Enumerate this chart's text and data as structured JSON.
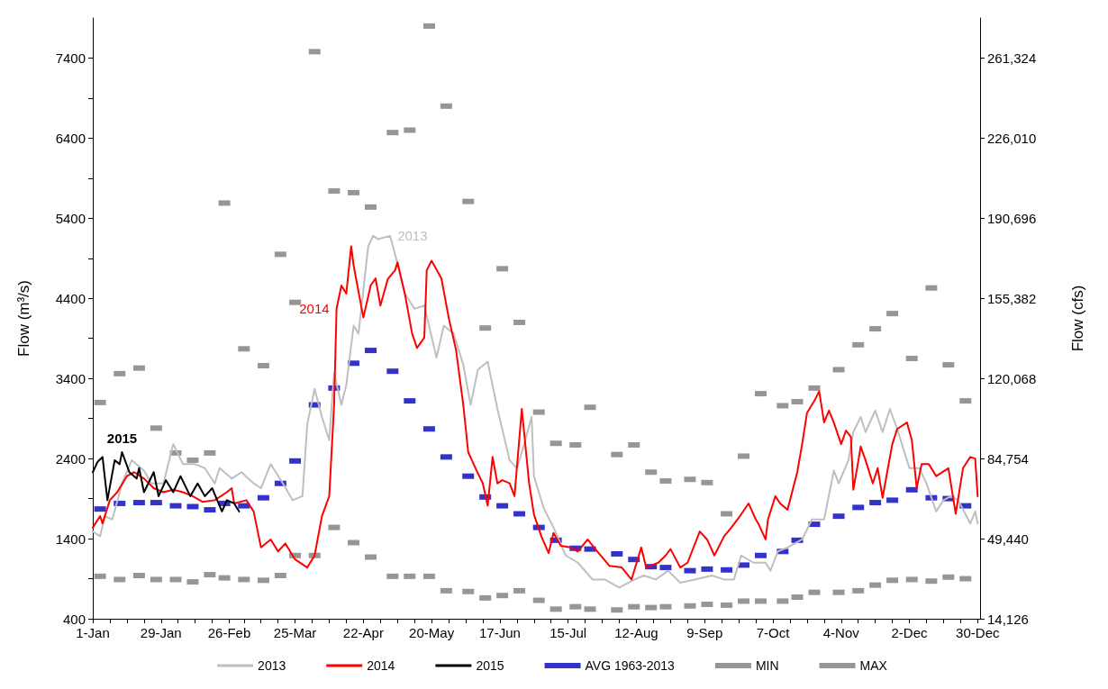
{
  "chart_data": {
    "type": "line",
    "ylabel": "Flow (m³/s)",
    "y2label": "Flow (cfs)",
    "xlim": [
      "--01-01",
      "--12-31"
    ],
    "ylim": [
      400,
      7900
    ],
    "y2lim": [
      14126,
      278986
    ],
    "xticks": [
      {
        "value": "--01-01",
        "label": "1-Jan"
      },
      {
        "value": "--01-08",
        "label": null
      },
      {
        "value": "--01-15",
        "label": null
      },
      {
        "value": "--01-22",
        "label": null
      },
      {
        "value": "--01-29",
        "label": "29-Jan"
      },
      {
        "value": "--02-05",
        "label": null
      },
      {
        "value": "--02-12",
        "label": null
      },
      {
        "value": "--02-19",
        "label": null
      },
      {
        "value": "--02-26",
        "label": "26-Feb"
      },
      {
        "value": "--03-04",
        "label": null
      },
      {
        "value": "--03-11",
        "label": null
      },
      {
        "value": "--03-18",
        "label": null
      },
      {
        "value": "--03-25",
        "label": "25-Mar"
      },
      {
        "value": "--04-01",
        "label": null
      },
      {
        "value": "--04-08",
        "label": null
      },
      {
        "value": "--04-15",
        "label": null
      },
      {
        "value": "--04-22",
        "label": "22-Apr"
      },
      {
        "value": "--04-29",
        "label": null
      },
      {
        "value": "--05-06",
        "label": null
      },
      {
        "value": "--05-13",
        "label": null
      },
      {
        "value": "--05-20",
        "label": "20-May"
      },
      {
        "value": "--05-27",
        "label": null
      },
      {
        "value": "--06-03",
        "label": null
      },
      {
        "value": "--06-10",
        "label": null
      },
      {
        "value": "--06-17",
        "label": "17-Jun"
      },
      {
        "value": "--06-24",
        "label": null
      },
      {
        "value": "--07-01",
        "label": null
      },
      {
        "value": "--07-08",
        "label": null
      },
      {
        "value": "--07-15",
        "label": "15-Jul"
      },
      {
        "value": "--07-22",
        "label": null
      },
      {
        "value": "--07-29",
        "label": null
      },
      {
        "value": "--08-05",
        "label": null
      },
      {
        "value": "--08-12",
        "label": "12-Aug"
      },
      {
        "value": "--08-19",
        "label": null
      },
      {
        "value": "--08-26",
        "label": null
      },
      {
        "value": "--09-02",
        "label": null
      },
      {
        "value": "--09-09",
        "label": "9-Sep"
      },
      {
        "value": "--09-16",
        "label": null
      },
      {
        "value": "--09-23",
        "label": null
      },
      {
        "value": "--09-30",
        "label": null
      },
      {
        "value": "--10-07",
        "label": "7-Oct"
      },
      {
        "value": "--10-14",
        "label": null
      },
      {
        "value": "--10-21",
        "label": null
      },
      {
        "value": "--10-28",
        "label": null
      },
      {
        "value": "--11-04",
        "label": "4-Nov"
      },
      {
        "value": "--11-11",
        "label": null
      },
      {
        "value": "--11-18",
        "label": null
      },
      {
        "value": "--11-25",
        "label": null
      },
      {
        "value": "--12-02",
        "label": "2-Dec"
      },
      {
        "value": "--12-09",
        "label": null
      },
      {
        "value": "--12-16",
        "label": null
      },
      {
        "value": "--12-23",
        "label": null
      },
      {
        "value": "--12-30",
        "label": "30-Dec"
      }
    ],
    "yticks": [
      400,
      {
        "value": 900,
        "label": null
      },
      1400,
      {
        "value": 1900,
        "label": null
      },
      2400,
      {
        "value": 2900,
        "label": null
      },
      3400,
      {
        "value": 3900,
        "label": null
      },
      4400,
      {
        "value": 4900,
        "label": null
      },
      5400,
      {
        "value": 5900,
        "label": null
      },
      6400,
      {
        "value": 6900,
        "label": null
      },
      7400
    ],
    "y2ticks": [
      {
        "value": 14126,
        "label": "14,126"
      },
      {
        "value": 49440,
        "label": "49,440"
      },
      {
        "value": 84754,
        "label": "84,754"
      },
      {
        "value": 120068,
        "label": "120,068"
      },
      {
        "value": 155382,
        "label": "155,382"
      },
      {
        "value": 190696,
        "label": "190,696"
      },
      {
        "value": 226010,
        "label": "226,010"
      },
      {
        "value": 261324,
        "label": "261,324"
      }
    ],
    "grid": false,
    "legend": "bottom",
    "line_style": "solid",
    "marker": "none",
    "series": [
      {
        "name": "2013",
        "color": "#bfbfbf",
        "x": [
          "--01-01",
          "--01-04",
          "--01-06",
          "--01-09",
          "--01-13",
          "--01-17",
          "--01-22",
          "--01-25",
          "--01-30",
          "--02-03",
          "--02-07",
          "--02-12",
          "--02-16",
          "--02-20",
          "--02-22",
          "--02-27",
          "--03-03",
          "--03-08",
          "--03-11",
          "--03-15",
          "--03-20",
          "--03-24",
          "--03-28",
          "--03-30",
          "--04-02",
          "--04-05",
          "--04-08",
          "--04-10",
          "--04-13",
          "--04-15",
          "--04-18",
          "--04-20",
          "--04-24",
          "--04-26",
          "--04-28",
          "--05-03",
          "--05-05",
          "--05-09",
          "--05-13",
          "--05-17",
          "--05-22",
          "--05-25",
          "--05-29",
          "--06-02",
          "--06-05",
          "--06-08",
          "--06-12",
          "--06-16",
          "--06-21",
          "--06-24",
          "--06-27",
          "--06-30",
          "--07-01",
          "--07-05",
          "--07-09",
          "--07-14",
          "--07-19",
          "--07-25",
          "--07-30",
          "--08-05",
          "--08-10",
          "--08-15",
          "--08-20",
          "--08-25",
          "--08-30",
          "--09-05",
          "--09-12",
          "--09-17",
          "--09-21",
          "--09-24",
          "--09-29",
          "--10-04",
          "--10-06",
          "--10-09",
          "--10-13",
          "--10-19",
          "--10-23",
          "--10-28",
          "--11-01",
          "--11-03",
          "--11-07",
          "--11-09",
          "--11-12",
          "--11-14",
          "--11-18",
          "--11-21",
          "--11-24",
          "--11-27",
          "--12-02",
          "--12-06",
          "--12-09",
          "--12-13",
          "--12-16",
          "--12-19",
          "--12-22",
          "--12-27",
          "--12-29",
          "--12-30"
        ],
        "values": [
          1490,
          1430,
          1680,
          1640,
          2090,
          2380,
          2250,
          2090,
          2090,
          2580,
          2330,
          2330,
          2280,
          2090,
          2280,
          2150,
          2230,
          2090,
          2030,
          2330,
          2090,
          1880,
          1930,
          2830,
          3270,
          2920,
          2630,
          3470,
          3070,
          3320,
          4060,
          3960,
          5050,
          5180,
          5140,
          5180,
          4950,
          4460,
          4270,
          4310,
          3660,
          4060,
          3960,
          3570,
          3070,
          3510,
          3610,
          3020,
          2380,
          2280,
          2580,
          2920,
          2180,
          1780,
          1540,
          1190,
          1100,
          890,
          890,
          790,
          870,
          940,
          890,
          1000,
          850,
          890,
          940,
          890,
          890,
          1190,
          1100,
          1100,
          1000,
          1240,
          1290,
          1390,
          1640,
          1640,
          2250,
          2090,
          2380,
          2730,
          2920,
          2730,
          3000,
          2730,
          3020,
          2770,
          2280,
          2280,
          2090,
          1740,
          1880,
          1930,
          1880,
          1590,
          1740,
          1590
        ]
      },
      {
        "name": "2014",
        "color": "#ff0000",
        "x": [
          "--01-01",
          "--01-04",
          "--01-05",
          "--01-08",
          "--01-11",
          "--01-15",
          "--01-18",
          "--01-22",
          "--01-26",
          "--01-30",
          "--02-03",
          "--02-07",
          "--02-11",
          "--02-15",
          "--02-20",
          "--02-25",
          "--02-27",
          "--02-28",
          "--03-05",
          "--03-08",
          "--03-11",
          "--03-15",
          "--03-18",
          "--03-21",
          "--03-25",
          "--03-30",
          "--04-02",
          "--04-05",
          "--04-08",
          "--04-10",
          "--04-11",
          "--04-13",
          "--04-15",
          "--04-17",
          "--04-18",
          "--04-22",
          "--04-25",
          "--04-27",
          "--04-29",
          "--05-02",
          "--05-05",
          "--05-06",
          "--05-09",
          "--05-12",
          "--05-14",
          "--05-17",
          "--05-18",
          "--05-20",
          "--05-24",
          "--05-27",
          "--05-30",
          "--06-02",
          "--06-04",
          "--06-07",
          "--06-10",
          "--06-12",
          "--06-14",
          "--06-16",
          "--06-18",
          "--06-21",
          "--06-23",
          "--06-26",
          "--06-29",
          "--07-01",
          "--07-04",
          "--07-07",
          "--07-09",
          "--07-12",
          "--07-16",
          "--07-19",
          "--07-23",
          "--07-27",
          "--08-01",
          "--08-06",
          "--08-10",
          "--08-14",
          "--08-16",
          "--08-21",
          "--08-24",
          "--08-26",
          "--08-30",
          "--09-02",
          "--09-07",
          "--09-10",
          "--09-13",
          "--09-17",
          "--09-20",
          "--09-23",
          "--09-27",
          "--09-30",
          "--10-01",
          "--10-04",
          "--10-05",
          "--10-08",
          "--10-10",
          "--10-13",
          "--10-17",
          "--10-19",
          "--10-21",
          "--10-24",
          "--10-26",
          "--10-28",
          "--10-30",
          "--11-01",
          "--11-04",
          "--11-06",
          "--11-08",
          "--11-09",
          "--11-11",
          "--11-12",
          "--11-14",
          "--11-17",
          "--11-19",
          "--11-21",
          "--11-23",
          "--11-25",
          "--11-27",
          "--12-01",
          "--12-03",
          "--12-05",
          "--12-07",
          "--12-10",
          "--12-13",
          "--12-18",
          "--12-21",
          "--12-24",
          "--12-27",
          "--12-29",
          "--12-30"
        ],
        "values": [
          1540,
          1680,
          1590,
          1880,
          1980,
          2180,
          2230,
          2150,
          2030,
          1980,
          2010,
          1980,
          1930,
          1860,
          1880,
          1980,
          2030,
          1840,
          1880,
          1740,
          1290,
          1390,
          1240,
          1340,
          1140,
          1040,
          1190,
          1680,
          1930,
          3070,
          4270,
          4560,
          4460,
          5050,
          4810,
          4160,
          4560,
          4650,
          4310,
          4640,
          4750,
          4850,
          4460,
          3960,
          3780,
          3910,
          4750,
          4870,
          4650,
          4160,
          3760,
          3070,
          2480,
          2280,
          2090,
          1810,
          2420,
          2090,
          2130,
          2090,
          1930,
          3020,
          2090,
          1700,
          1430,
          1220,
          1470,
          1310,
          1290,
          1240,
          1390,
          1240,
          1060,
          1040,
          890,
          1290,
          1040,
          1100,
          1190,
          1270,
          1040,
          1100,
          1490,
          1390,
          1190,
          1430,
          1540,
          1660,
          1840,
          1640,
          1590,
          1390,
          1640,
          1930,
          1840,
          1760,
          2230,
          2580,
          2970,
          3120,
          3240,
          2850,
          3000,
          2850,
          2580,
          2750,
          2670,
          2010,
          2360,
          2550,
          2380,
          2090,
          2280,
          1910,
          2250,
          2580,
          2770,
          2850,
          2630,
          2030,
          2330,
          2330,
          2180,
          2280,
          1710,
          2280,
          2420,
          2400,
          1930
        ]
      },
      {
        "name": "2015",
        "color": "#000000",
        "x": [
          "--01-01",
          "--01-03",
          "--01-05",
          "--01-07",
          "--01-10",
          "--01-12",
          "--01-13",
          "--01-16",
          "--01-19",
          "--01-20",
          "--01-22",
          "--01-26",
          "--01-28",
          "--01-31",
          "--02-03",
          "--02-06",
          "--02-10",
          "--02-13",
          "--02-16",
          "--02-19",
          "--02-23",
          "--02-25",
          "--02-28",
          "--03-02"
        ],
        "values": [
          2230,
          2360,
          2420,
          1880,
          2380,
          2330,
          2480,
          2230,
          2150,
          2280,
          1980,
          2230,
          1930,
          2130,
          1980,
          2180,
          1930,
          2090,
          1930,
          2030,
          1740,
          1880,
          1840,
          1740
        ]
      },
      {
        "name": "AVG 1963-2013",
        "type": "scatter",
        "marker": "square",
        "color": "#3333cc",
        "x": [
          "--01-04",
          "--01-12",
          "--01-20",
          "--01-27",
          "--02-04",
          "--02-11",
          "--02-18",
          "--02-24",
          "--03-04",
          "--03-12",
          "--03-19",
          "--03-25",
          "--04-02",
          "--04-10",
          "--04-18",
          "--04-25",
          "--05-04",
          "--05-11",
          "--05-19",
          "--05-26",
          "--06-04",
          "--06-11",
          "--06-18",
          "--06-25",
          "--07-03",
          "--07-10",
          "--07-18",
          "--07-24",
          "--08-04",
          "--08-11",
          "--08-18",
          "--08-24",
          "--09-03",
          "--09-10",
          "--09-18",
          "--09-25",
          "--10-02",
          "--10-11",
          "--10-17",
          "--10-24",
          "--11-03",
          "--11-11",
          "--11-18",
          "--11-25",
          "--12-03",
          "--12-11",
          "--12-18",
          "--12-25"
        ],
        "values": [
          1770,
          1840,
          1850,
          1850,
          1810,
          1800,
          1760,
          1840,
          1810,
          1910,
          2090,
          2370,
          3070,
          3280,
          3590,
          3750,
          3490,
          3120,
          2770,
          2420,
          2180,
          1920,
          1810,
          1710,
          1540,
          1380,
          1280,
          1270,
          1210,
          1140,
          1050,
          1040,
          1000,
          1020,
          1010,
          1070,
          1190,
          1240,
          1380,
          1580,
          1680,
          1790,
          1850,
          1880,
          2010,
          1910,
          1900,
          1810
        ]
      },
      {
        "name": "MIN",
        "type": "scatter",
        "marker": "square",
        "color": "#969696",
        "x": [
          "--01-04",
          "--01-12",
          "--01-20",
          "--01-27",
          "--02-04",
          "--02-11",
          "--02-18",
          "--02-24",
          "--03-04",
          "--03-12",
          "--03-19",
          "--03-25",
          "--04-02",
          "--04-10",
          "--04-18",
          "--04-25",
          "--05-04",
          "--05-11",
          "--05-19",
          "--05-26",
          "--06-04",
          "--06-11",
          "--06-18",
          "--06-25",
          "--07-03",
          "--07-10",
          "--07-18",
          "--07-24",
          "--08-04",
          "--08-11",
          "--08-18",
          "--08-24",
          "--09-03",
          "--09-10",
          "--09-18",
          "--09-25",
          "--10-02",
          "--10-11",
          "--10-17",
          "--10-24",
          "--11-03",
          "--11-11",
          "--11-18",
          "--11-25",
          "--12-03",
          "--12-11",
          "--12-18",
          "--12-25"
        ],
        "values": [
          930,
          890,
          940,
          890,
          890,
          860,
          950,
          910,
          890,
          880,
          940,
          1190,
          1190,
          1540,
          1350,
          1170,
          930,
          930,
          930,
          750,
          740,
          660,
          690,
          750,
          630,
          520,
          550,
          520,
          510,
          550,
          540,
          550,
          560,
          580,
          570,
          620,
          620,
          620,
          670,
          730,
          730,
          750,
          820,
          880,
          890,
          870,
          920,
          900
        ]
      },
      {
        "name": "MAX",
        "type": "scatter",
        "marker": "square",
        "color": "#969696",
        "x": [
          "--01-04",
          "--01-12",
          "--01-20",
          "--01-27",
          "--02-04",
          "--02-11",
          "--02-18",
          "--02-24",
          "--03-04",
          "--03-12",
          "--03-19",
          "--03-25",
          "--04-02",
          "--04-10",
          "--04-18",
          "--04-25",
          "--05-04",
          "--05-11",
          "--05-19",
          "--05-26",
          "--06-04",
          "--06-11",
          "--06-18",
          "--06-25",
          "--07-03",
          "--07-10",
          "--07-18",
          "--07-24",
          "--08-04",
          "--08-11",
          "--08-18",
          "--08-24",
          "--09-03",
          "--09-10",
          "--09-18",
          "--09-25",
          "--10-02",
          "--10-11",
          "--10-17",
          "--10-24",
          "--11-03",
          "--11-11",
          "--11-18",
          "--11-25",
          "--12-03",
          "--12-11",
          "--12-18",
          "--12-25"
        ],
        "values": [
          3100,
          3460,
          3530,
          2780,
          2470,
          2380,
          2470,
          5590,
          3770,
          3560,
          4950,
          4350,
          7480,
          5740,
          5720,
          5540,
          6470,
          6500,
          7800,
          6800,
          5610,
          4030,
          4770,
          4100,
          2980,
          2590,
          2570,
          3040,
          2450,
          2570,
          2230,
          2120,
          2140,
          2100,
          1710,
          2430,
          3210,
          3060,
          3110,
          3280,
          3510,
          3820,
          4020,
          4210,
          3650,
          4530,
          3570,
          3120
        ]
      }
    ],
    "annotations": [
      {
        "text": "2013",
        "x": "--05-03",
        "y": 5180
      },
      {
        "text": "2014",
        "x": "--04-11",
        "y": 4270
      },
      {
        "text": "2015",
        "x": "--01-13",
        "y": 2480
      }
    ]
  }
}
